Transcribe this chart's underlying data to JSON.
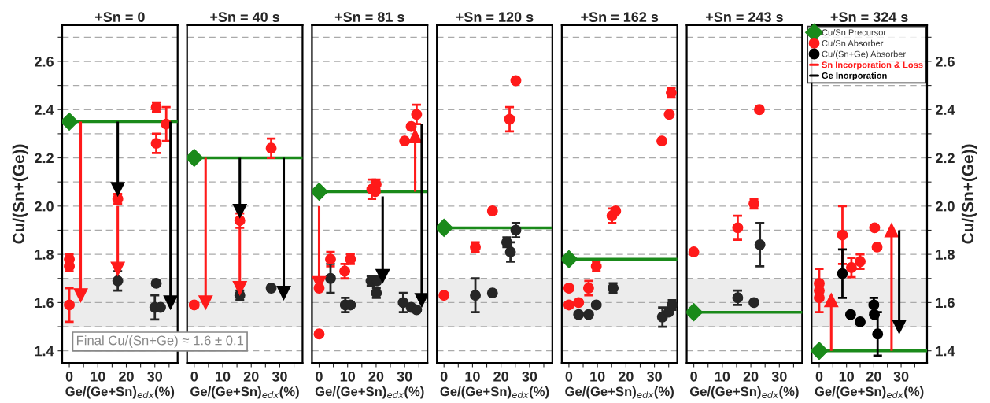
{
  "chart_data": [
    {
      "type": "scatter",
      "title": "+Sn = 0",
      "xlabel": "Ge/(Ge+Sn)$_{edx}$(%)",
      "ylabel": "Cu/(Sn+(Ge))",
      "xlim": [
        -2.5,
        38
      ],
      "ylim": [
        1.35,
        2.75
      ],
      "xticks": [
        0,
        {
          "value": 5,
          "label": null
        },
        10,
        {
          "value": 15,
          "label": null
        },
        20,
        {
          "value": 25,
          "label": null
        },
        30,
        {
          "value": 35,
          "label": null
        }
      ],
      "yticks": [
        1.4,
        {
          "value": 1.5,
          "label": null
        },
        1.6,
        {
          "value": 1.7,
          "label": null
        },
        1.8,
        {
          "value": 1.9,
          "label": null
        },
        {
          "value": 2.0,
          "label": "2.0"
        },
        {
          "value": 2.1,
          "label": null
        },
        2.2,
        {
          "value": 2.3,
          "label": null
        },
        2.4,
        {
          "value": 2.5,
          "label": null
        },
        2.6,
        {
          "value": 2.7,
          "label": null
        }
      ],
      "grid": "y",
      "legend": false,
      "bands": [
        {
          "axis": "y",
          "from": 1.5,
          "to": 1.7,
          "color": "#ececec"
        }
      ],
      "ref_lines": [
        {
          "axis": "y",
          "value": 2.35,
          "color": "#1a8a1a"
        }
      ],
      "annotations": [
        "Final Cu/(Sn+Ge) ≈ 1.6 ± 0.1"
      ],
      "series": [
        {
          "marker": "diamond",
          "color": "#1a8a1a",
          "x": [
            0
          ],
          "values": [
            2.35
          ]
        },
        {
          "marker": "circle",
          "color": "#ff1a1a",
          "x": [
            0,
            0,
            0,
            17,
            30.5,
            34,
            30.5
          ],
          "values": [
            1.78,
            1.75,
            1.59,
            2.03,
            2.41,
            2.34,
            2.26
          ],
          "errors": [
            0.02,
            0.02,
            0.07,
            0.02,
            0.02,
            0.07,
            0.04
          ]
        },
        {
          "marker": "circle",
          "color": "#262626",
          "x": [
            17,
            30.5,
            30,
            32
          ],
          "values": [
            1.69,
            1.68,
            1.58,
            1.58
          ],
          "errors": [
            0.04,
            null,
            0.05,
            null
          ]
        },
        {
          "type": "line",
          "color": "#ff1a1a",
          "x": [
            4,
            4
          ],
          "values": [
            2.35,
            1.63
          ]
        },
        {
          "type": "line",
          "color": "#ff1a1a",
          "x": [
            17,
            17
          ],
          "values": [
            2.0,
            1.74
          ]
        },
        {
          "type": "line",
          "color": "#000000",
          "x": [
            17,
            17
          ],
          "values": [
            2.35,
            2.07
          ]
        },
        {
          "type": "line",
          "color": "#000000",
          "x": [
            35.5,
            35.5
          ],
          "values": [
            2.35,
            1.6
          ]
        }
      ]
    },
    {
      "type": "scatter",
      "title": "+Sn = 40 s",
      "xlabel": "Ge/(Ge+Sn)$_{edx}$(%)",
      "xlim": [
        -2.5,
        38
      ],
      "ylim": [
        1.35,
        2.75
      ],
      "xticks": [
        0,
        {
          "value": 5,
          "label": null
        },
        10,
        {
          "value": 15,
          "label": null
        },
        20,
        {
          "value": 25,
          "label": null
        },
        30,
        {
          "value": 35,
          "label": null
        }
      ],
      "yticks": [
        1.4,
        {
          "value": 1.5,
          "label": null
        },
        1.6,
        {
          "value": 1.7,
          "label": null
        },
        1.8,
        {
          "value": 1.9,
          "label": null
        },
        2.0,
        {
          "value": 2.1,
          "label": null
        },
        2.2,
        {
          "value": 2.3,
          "label": null
        },
        2.4,
        {
          "value": 2.5,
          "label": null
        },
        2.6,
        {
          "value": 2.7,
          "label": null
        }
      ],
      "tick_labels": "x",
      "grid": "y",
      "legend": false,
      "bands": [
        {
          "axis": "y",
          "from": 1.5,
          "to": 1.7,
          "color": "#ececec"
        }
      ],
      "ref_lines": [
        {
          "axis": "y",
          "value": 2.2,
          "color": "#1a8a1a"
        }
      ],
      "series": [
        {
          "marker": "diamond",
          "color": "#1a8a1a",
          "x": [
            0
          ],
          "values": [
            2.2
          ]
        },
        {
          "marker": "circle",
          "color": "#ff1a1a",
          "x": [
            0,
            16,
            27
          ],
          "values": [
            1.59,
            1.94,
            2.24
          ],
          "errors": [
            0.01,
            0.03,
            0.04
          ]
        },
        {
          "marker": "circle",
          "color": "#262626",
          "x": [
            16,
            27
          ],
          "values": [
            1.63,
            1.66
          ],
          "errors": [
            0.02,
            0.01
          ]
        },
        {
          "type": "line",
          "color": "#ff1a1a",
          "x": [
            4,
            4
          ],
          "values": [
            2.2,
            1.6
          ]
        },
        {
          "type": "line",
          "color": "#ff1a1a",
          "x": [
            16,
            16
          ],
          "values": [
            1.91,
            1.66
          ]
        },
        {
          "type": "line",
          "color": "#000000",
          "x": [
            16,
            16
          ],
          "values": [
            2.2,
            1.98
          ]
        },
        {
          "type": "line",
          "color": "#000000",
          "x": [
            31.4,
            31.4
          ],
          "values": [
            2.2,
            1.64
          ]
        }
      ]
    },
    {
      "type": "scatter",
      "title": "+Sn = 81 s",
      "xlabel": "Ge/(Ge+Sn)$_{edx}$(%)",
      "xlim": [
        -2.5,
        38
      ],
      "ylim": [
        1.35,
        2.75
      ],
      "xticks": [
        0,
        {
          "value": 5,
          "label": null
        },
        10,
        {
          "value": 15,
          "label": null
        },
        20,
        {
          "value": 25,
          "label": null
        },
        30,
        {
          "value": 35,
          "label": null
        }
      ],
      "yticks": [
        1.4,
        {
          "value": 1.5,
          "label": null
        },
        1.6,
        {
          "value": 1.7,
          "label": null
        },
        1.8,
        {
          "value": 1.9,
          "label": null
        },
        2.0,
        {
          "value": 2.1,
          "label": null
        },
        2.2,
        {
          "value": 2.3,
          "label": null
        },
        2.4,
        {
          "value": 2.5,
          "label": null
        },
        2.6,
        {
          "value": 2.7,
          "label": null
        }
      ],
      "tick_labels": "x",
      "grid": "y",
      "legend": false,
      "bands": [
        {
          "axis": "y",
          "from": 1.5,
          "to": 1.7,
          "color": "#ececec"
        }
      ],
      "ref_lines": [
        {
          "axis": "y",
          "value": 2.06,
          "color": "#1a8a1a"
        }
      ],
      "series": [
        {
          "marker": "diamond",
          "color": "#1a8a1a",
          "x": [
            0
          ],
          "values": [
            2.06
          ]
        },
        {
          "marker": "circle",
          "color": "#ff1a1a",
          "x": [
            0,
            0,
            4,
            9,
            11,
            18.5,
            20,
            19.7,
            30,
            32.3,
            34.2
          ],
          "values": [
            1.66,
            1.47,
            1.78,
            1.73,
            1.78,
            2.07,
            2.09,
            2.06,
            2.27,
            2.33,
            2.38
          ],
          "errors": [
            0.01,
            null,
            0.03,
            0.03,
            0.02,
            0.04,
            0.02,
            null,
            null,
            0.01,
            0.04
          ]
        },
        {
          "marker": "circle",
          "color": "#262626",
          "x": [
            4,
            9.2,
            11,
            18.2,
            20.3,
            20.1,
            29.5,
            32.3,
            34.2
          ],
          "values": [
            1.7,
            1.59,
            1.59,
            1.69,
            1.69,
            1.64,
            1.6,
            1.58,
            1.57
          ],
          "errors": [
            0.06,
            0.03,
            null,
            0.02,
            null,
            0.02,
            0.04,
            null,
            null
          ]
        },
        {
          "type": "line",
          "color": "#ff1a1a",
          "x": [
            0,
            0
          ],
          "values": [
            2.0,
            1.68
          ]
        },
        {
          "type": "line",
          "color": "#ff1a1a",
          "x": [
            33.7,
            33.7
          ],
          "values": [
            2.06,
            2.29
          ]
        },
        {
          "type": "line",
          "color": "#000000",
          "x": [
            22.3,
            22.3
          ],
          "values": [
            2.04,
            1.71
          ]
        },
        {
          "type": "line",
          "color": "#000000",
          "x": [
            36,
            36
          ],
          "values": [
            2.34,
            1.61
          ]
        }
      ]
    },
    {
      "type": "scatter",
      "title": "+Sn = 120 s",
      "xlabel": "Ge/(Ge+Sn)$_{edx}$(%)",
      "xlim": [
        -2.5,
        38
      ],
      "ylim": [
        1.35,
        2.75
      ],
      "xticks": [
        0,
        {
          "value": 5,
          "label": null
        },
        10,
        {
          "value": 15,
          "label": null
        },
        20,
        {
          "value": 25,
          "label": null
        },
        30,
        {
          "value": 35,
          "label": null
        }
      ],
      "yticks": [
        1.4,
        {
          "value": 1.5,
          "label": null
        },
        1.6,
        {
          "value": 1.7,
          "label": null
        },
        1.8,
        {
          "value": 1.9,
          "label": null
        },
        2.0,
        {
          "value": 2.1,
          "label": null
        },
        2.2,
        {
          "value": 2.3,
          "label": null
        },
        2.4,
        {
          "value": 2.5,
          "label": null
        },
        2.6,
        {
          "value": 2.7,
          "label": null
        }
      ],
      "tick_labels": "x",
      "grid": "y",
      "legend": false,
      "bands": [
        {
          "axis": "y",
          "from": 1.5,
          "to": 1.7,
          "color": "#ececec"
        }
      ],
      "ref_lines": [
        {
          "axis": "y",
          "value": 1.91,
          "color": "#1a8a1a"
        }
      ],
      "series": [
        {
          "marker": "diamond",
          "color": "#1a8a1a",
          "x": [
            0
          ],
          "values": [
            1.91
          ]
        },
        {
          "marker": "circle",
          "color": "#ff1a1a",
          "x": [
            0,
            11,
            17,
            23,
            25.2
          ],
          "values": [
            1.63,
            1.83,
            1.98,
            2.36,
            2.52
          ],
          "errors": [
            null,
            0.02,
            0.01,
            0.05,
            0.01
          ]
        },
        {
          "marker": "circle",
          "color": "#262626",
          "x": [
            11,
            17,
            22,
            23.3,
            25.2
          ],
          "values": [
            1.63,
            1.64,
            1.85,
            1.81,
            1.9
          ],
          "errors": [
            0.07,
            0.01,
            0.02,
            0.04,
            0.03
          ]
        }
      ]
    },
    {
      "type": "scatter",
      "title": "+Sn = 162 s",
      "xlabel": "Ge/(Ge+Sn)$_{edx}$(%)",
      "xlim": [
        -2.5,
        38
      ],
      "ylim": [
        1.35,
        2.75
      ],
      "xticks": [
        0,
        {
          "value": 5,
          "label": null
        },
        10,
        {
          "value": 15,
          "label": null
        },
        20,
        {
          "value": 25,
          "label": null
        },
        30,
        {
          "value": 35,
          "label": null
        }
      ],
      "yticks": [
        1.4,
        {
          "value": 1.5,
          "label": null
        },
        1.6,
        {
          "value": 1.7,
          "label": null
        },
        1.8,
        {
          "value": 1.9,
          "label": null
        },
        2.0,
        {
          "value": 2.1,
          "label": null
        },
        2.2,
        {
          "value": 2.3,
          "label": null
        },
        2.4,
        {
          "value": 2.5,
          "label": null
        },
        2.6,
        {
          "value": 2.7,
          "label": null
        }
      ],
      "tick_labels": "x",
      "grid": "y",
      "legend": false,
      "bands": [
        {
          "axis": "y",
          "from": 1.5,
          "to": 1.7,
          "color": "#ececec"
        }
      ],
      "ref_lines": [
        {
          "axis": "y",
          "value": 1.78,
          "color": "#1a8a1a"
        }
      ],
      "series": [
        {
          "marker": "diamond",
          "color": "#1a8a1a",
          "x": [
            0
          ],
          "values": [
            1.78
          ]
        },
        {
          "marker": "circle",
          "color": "#ff1a1a",
          "x": [
            0,
            0,
            3.4,
            6.9,
            9.6,
            15.1,
            16.4,
            32.6,
            35.2,
            35.9
          ],
          "values": [
            1.66,
            1.59,
            1.6,
            1.66,
            1.75,
            1.96,
            1.98,
            2.27,
            2.38,
            2.47
          ],
          "errors": [
            0.01,
            0.01,
            0.01,
            0.03,
            0.02,
            0.03,
            null,
            null,
            null,
            0.02
          ]
        },
        {
          "marker": "circle",
          "color": "#262626",
          "x": [
            3.4,
            6.9,
            9.6,
            15.5,
            32.8,
            35,
            36.2
          ],
          "values": [
            1.55,
            1.55,
            1.59,
            1.66,
            1.54,
            1.56,
            1.59
          ],
          "errors": [
            null,
            null,
            null,
            0.02,
            0.04,
            null,
            0.02
          ]
        }
      ]
    },
    {
      "type": "scatter",
      "title": "+Sn = 243 s",
      "xlabel": "Ge/(Ge+Sn)$_{edx}$(%)",
      "xlim": [
        -2.5,
        38
      ],
      "ylim": [
        1.35,
        2.75
      ],
      "xticks": [
        0,
        {
          "value": 5,
          "label": null
        },
        10,
        {
          "value": 15,
          "label": null
        },
        20,
        {
          "value": 25,
          "label": null
        },
        30,
        {
          "value": 35,
          "label": null
        }
      ],
      "yticks": [
        1.4,
        {
          "value": 1.5,
          "label": null
        },
        1.6,
        {
          "value": 1.7,
          "label": null
        },
        1.8,
        {
          "value": 1.9,
          "label": null
        },
        2.0,
        {
          "value": 2.1,
          "label": null
        },
        2.2,
        {
          "value": 2.3,
          "label": null
        },
        2.4,
        {
          "value": 2.5,
          "label": null
        },
        2.6,
        {
          "value": 2.7,
          "label": null
        }
      ],
      "tick_labels": "x",
      "grid": "y",
      "legend": false,
      "bands": [
        {
          "axis": "y",
          "from": 1.5,
          "to": 1.7,
          "color": "#ececec"
        }
      ],
      "ref_lines": [
        {
          "axis": "y",
          "value": 1.56,
          "color": "#1a8a1a"
        }
      ],
      "series": [
        {
          "marker": "diamond",
          "color": "#1a8a1a",
          "x": [
            0
          ],
          "values": [
            1.56
          ]
        },
        {
          "marker": "circle",
          "color": "#ff1a1a",
          "x": [
            0,
            15.4,
            21.1,
            23
          ],
          "values": [
            1.81,
            1.91,
            2.01,
            2.4
          ],
          "errors": [
            null,
            0.05,
            0.02,
            null
          ]
        },
        {
          "marker": "circle",
          "color": "#262626",
          "x": [
            15.4,
            21.1,
            23.2
          ],
          "values": [
            1.62,
            1.6,
            1.84
          ],
          "errors": [
            0.03,
            null,
            0.09
          ]
        }
      ]
    },
    {
      "type": "scatter",
      "title": "+Sn = 324 s",
      "xlabel": "Ge/(Ge+Sn)$_{edx}$(%)",
      "ylabel": "Cu/(Sn+(Ge))",
      "xlim": [
        -2.8,
        39.5
      ],
      "ylim": [
        1.35,
        2.75
      ],
      "xticks": [
        0,
        {
          "value": 5,
          "label": null
        },
        10,
        {
          "value": 15,
          "label": null
        },
        20,
        {
          "value": 25,
          "label": null
        },
        30,
        {
          "value": 35,
          "label": null
        }
      ],
      "yticks": [
        1.4,
        {
          "value": 1.5,
          "label": null
        },
        1.6,
        {
          "value": 1.7,
          "label": null
        },
        1.8,
        {
          "value": 1.9,
          "label": null
        },
        {
          "value": 2.0,
          "label": "2.0"
        },
        {
          "value": 2.1,
          "label": null
        },
        2.2,
        {
          "value": 2.3,
          "label": null
        },
        2.4,
        {
          "value": 2.5,
          "label": null
        },
        2.6,
        {
          "value": 2.7,
          "label": null
        }
      ],
      "grid": "y",
      "legend": "top right",
      "bands": [
        {
          "axis": "y",
          "from": 1.5,
          "to": 1.7,
          "color": "#ececec"
        }
      ],
      "ref_lines": [
        {
          "axis": "y",
          "value": 1.4,
          "color": "#1a8a1a"
        }
      ],
      "series": [
        {
          "name": "Cu/Sn Precursor",
          "marker": "diamond",
          "color": "#1a8a1a",
          "x": [
            0
          ],
          "values": [
            1.4
          ]
        },
        {
          "name": "Cu/Sn Absorber",
          "marker": "circle",
          "color": "#ff1a1a",
          "x": [
            0,
            0,
            0,
            8.5,
            11.8,
            15,
            20.3,
            21.2
          ],
          "values": [
            1.68,
            1.65,
            1.62,
            1.88,
            1.745,
            1.77,
            1.91,
            1.83
          ],
          "errors": [
            0.06,
            null,
            0.06,
            0.12,
            0.04,
            0.03,
            null,
            null
          ]
        },
        {
          "name": "Cu/(Sn+Ge) Absorber",
          "marker": "circle",
          "color": "#000000",
          "x": [
            8.5,
            11.5,
            15,
            20,
            20.2,
            21.4
          ],
          "values": [
            1.72,
            1.55,
            1.52,
            1.59,
            1.55,
            1.47
          ],
          "errors": [
            0.1,
            null,
            null,
            0.03,
            null,
            0.09
          ]
        },
        {
          "name": "Sn Incorporation & Loss",
          "type": "line",
          "color": "#ff1a1a",
          "x": [
            4.4,
            4.4
          ],
          "values": [
            1.4,
            1.61
          ]
        },
        {
          "type": "line",
          "color": "#ff1a1a",
          "x": [
            26.5,
            26.5
          ],
          "values": [
            1.4,
            1.9
          ]
        },
        {
          "name": "Ge Inorporation",
          "type": "line",
          "color": "#000000",
          "x": [
            29.3,
            29.3
          ],
          "values": [
            1.9,
            1.5
          ]
        }
      ]
    }
  ]
}
